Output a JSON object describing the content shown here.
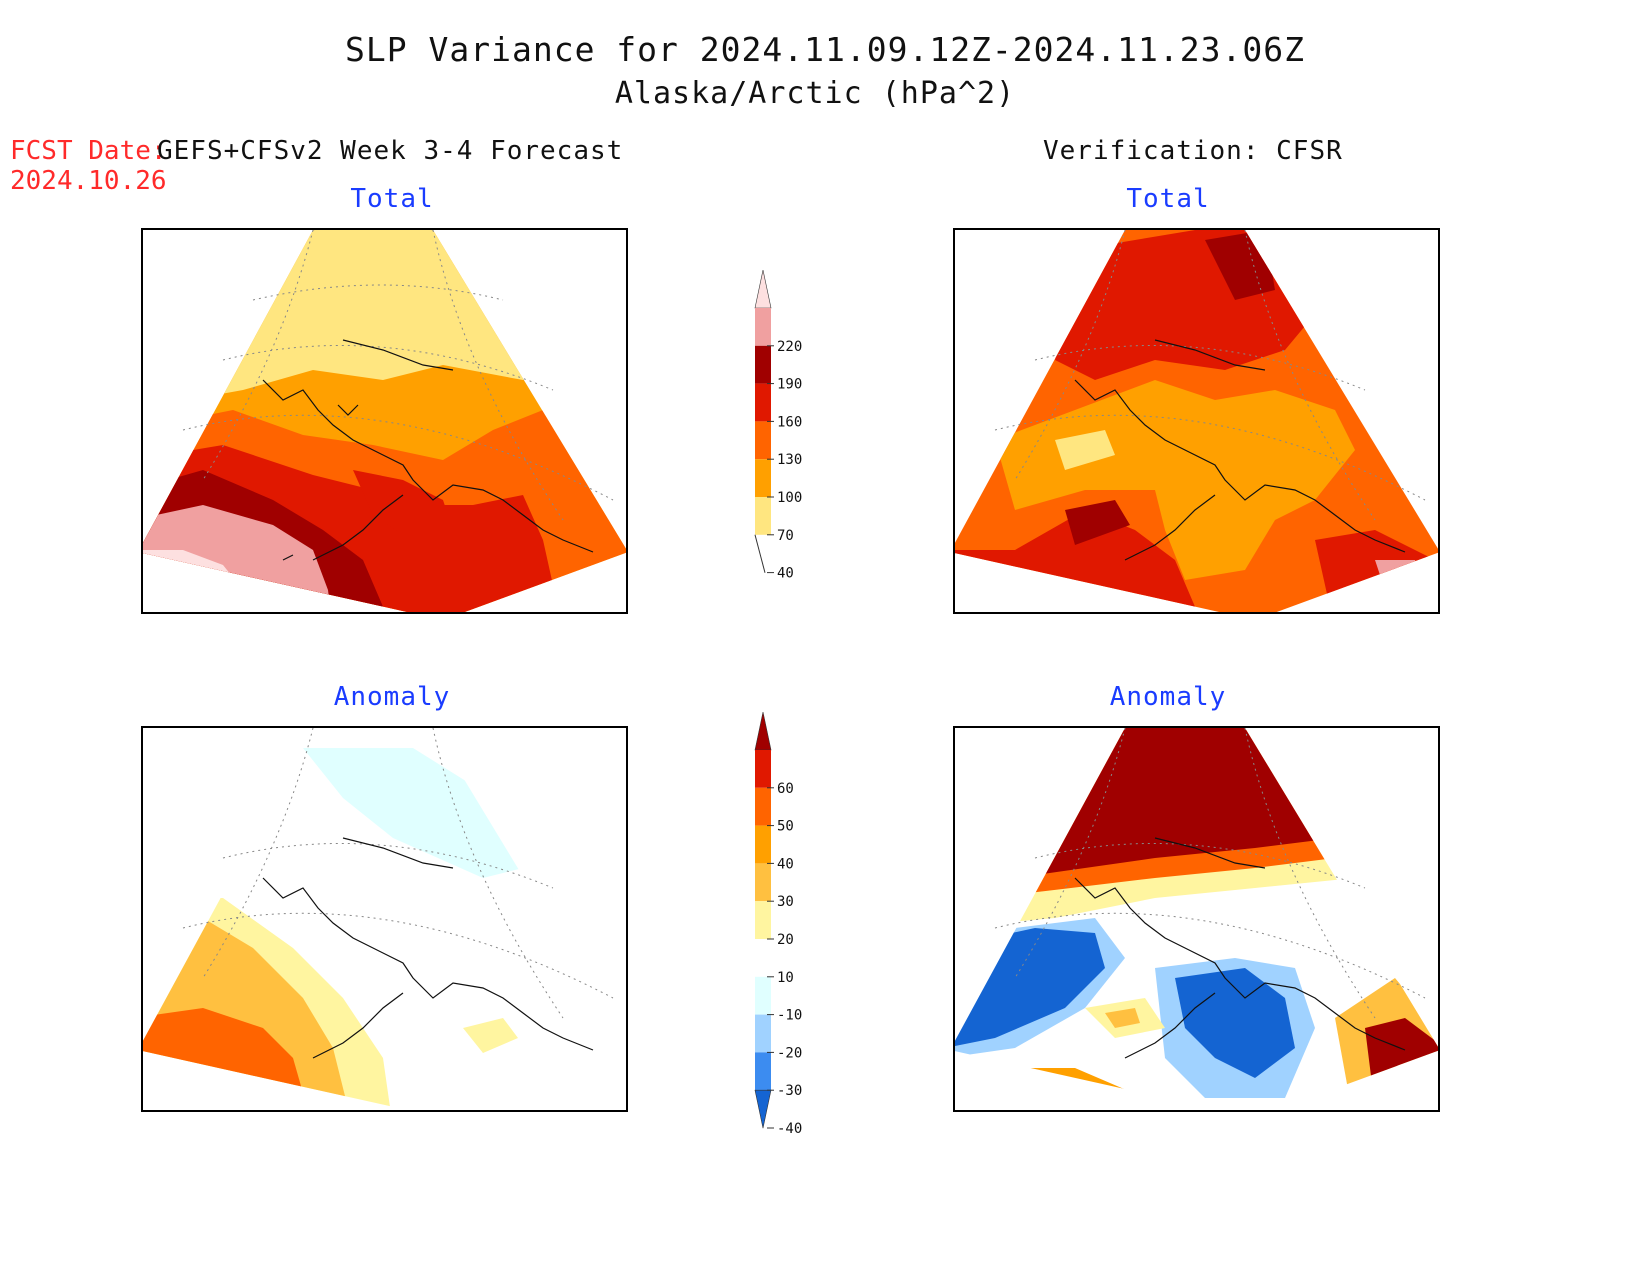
{
  "header": {
    "title": "SLP Variance for 2024.11.09.12Z-2024.11.23.06Z",
    "subtitle": "Alaska/Arctic (hPa^2)",
    "fcst_label": "FCST Date:",
    "fcst_date": "2024.10.26",
    "left_column_title": "GEFS+CFSv2 Week 3-4 Forecast",
    "right_column_title": "Verification: CFSR"
  },
  "panels": {
    "forecast_total_title": "Total",
    "verification_total_title": "Total",
    "forecast_anomaly_title": "Anomaly",
    "verification_anomaly_title": "Anomaly"
  },
  "colorbars": {
    "total": {
      "labels": [
        "220",
        "190",
        "160",
        "130",
        "100",
        "70",
        "40"
      ],
      "colors": [
        "#fde0e0",
        "#f0a0a0",
        "#a00000",
        "#e01800",
        "#ff6400",
        "#ffa000",
        "#ffe680"
      ]
    },
    "anomaly": {
      "labels": [
        "60",
        "50",
        "40",
        "30",
        "20",
        "10",
        "-10",
        "-20",
        "-30",
        "-40"
      ],
      "colors": [
        "#a00000",
        "#e01800",
        "#ff6400",
        "#ffa000",
        "#ffc040",
        "#fff5a0",
        "#ffffff",
        "#e0ffff",
        "#a0d2ff",
        "#3c8cf0",
        "#1464d2"
      ]
    }
  },
  "chart_data": {
    "type": "map",
    "region": "Alaska/Arctic",
    "units": "hPa^2",
    "panels": [
      {
        "name": "GEFS+CFSv2 Week 3-4 Forecast Total",
        "range_hPa2": [
          40,
          220
        ],
        "max_region": "southwest (Bering Sea/North Pacific)",
        "min_region": "north (Arctic)"
      },
      {
        "name": "Verification: CFSR Total",
        "range_hPa2": [
          40,
          220
        ],
        "max_region": "north Arctic and southeast edge",
        "min_region": "interior"
      },
      {
        "name": "GEFS+CFSv2 Week 3-4 Forecast Anomaly",
        "range_hPa2": [
          -20,
          50
        ],
        "positive_region": "southwest",
        "negative_region": "north"
      },
      {
        "name": "Verification: CFSR Anomaly",
        "range_hPa2": [
          -40,
          60
        ],
        "positive_region": "north Arctic and southeast",
        "negative_region": "west and central-south"
      }
    ]
  }
}
